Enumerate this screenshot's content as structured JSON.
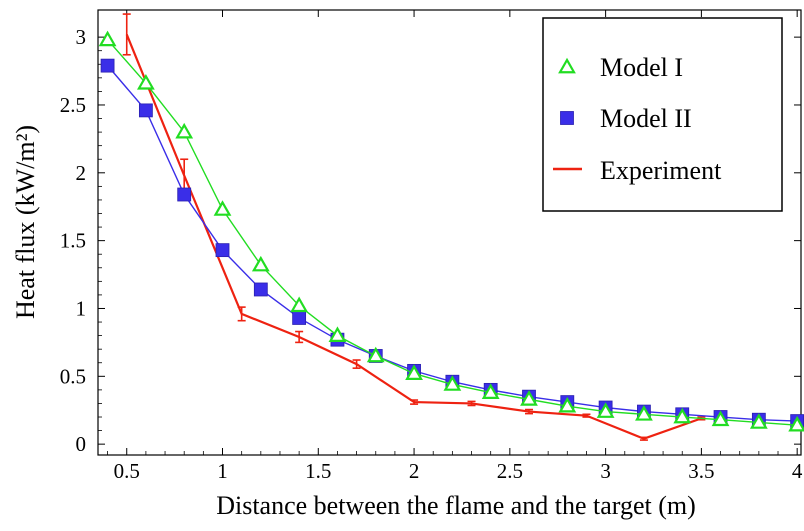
{
  "chart_data": {
    "type": "line",
    "xlabel": "Distance between the flame and the target (m)",
    "ylabel": "Heat flux (kW/m²)",
    "xlim": [
      0.35,
      4.02
    ],
    "ylim": [
      -0.08,
      3.2
    ],
    "x_ticks": [
      0.5,
      1,
      1.5,
      2,
      2.5,
      3,
      3.5,
      4
    ],
    "x_tick_labels": [
      "0.5",
      "1",
      "1.5",
      "2",
      "2.5",
      "3",
      "3.5",
      "4"
    ],
    "y_ticks": [
      0,
      0.5,
      1,
      1.5,
      2,
      2.5,
      3
    ],
    "y_tick_labels": [
      "0",
      "0.5",
      "1",
      "1.5",
      "2",
      "2.5",
      "3"
    ],
    "legend_position": "top-right",
    "series": [
      {
        "name": "Model I",
        "marker": "triangle",
        "color": "#22dd22",
        "x": [
          0.4,
          0.6,
          0.8,
          1.0,
          1.2,
          1.4,
          1.6,
          1.8,
          2.0,
          2.2,
          2.4,
          2.6,
          2.8,
          3.0,
          3.2,
          3.4,
          3.6,
          3.8,
          4.0
        ],
        "y": [
          2.98,
          2.66,
          2.3,
          1.73,
          1.32,
          1.02,
          0.8,
          0.65,
          0.52,
          0.44,
          0.38,
          0.33,
          0.28,
          0.24,
          0.22,
          0.2,
          0.18,
          0.16,
          0.14
        ]
      },
      {
        "name": "Model II",
        "marker": "square",
        "color": "#3a2ee8",
        "x": [
          0.4,
          0.6,
          0.8,
          1.0,
          1.2,
          1.4,
          1.6,
          1.8,
          2.0,
          2.2,
          2.4,
          2.6,
          2.8,
          3.0,
          3.2,
          3.4,
          3.6,
          3.8,
          4.0
        ],
        "y": [
          2.79,
          2.46,
          1.84,
          1.43,
          1.14,
          0.93,
          0.77,
          0.65,
          0.54,
          0.46,
          0.4,
          0.35,
          0.31,
          0.27,
          0.24,
          0.22,
          0.2,
          0.18,
          0.17
        ]
      },
      {
        "name": "Experiment",
        "marker": "none",
        "color": "#ee2211",
        "x": [
          0.5,
          0.8,
          1.1,
          1.4,
          1.7,
          2.0,
          2.3,
          2.6,
          2.9,
          3.2,
          3.5
        ],
        "y": [
          3.02,
          1.98,
          0.96,
          0.79,
          0.59,
          0.31,
          0.3,
          0.24,
          0.21,
          0.04,
          0.19
        ],
        "error": [
          0.15,
          0.12,
          0.05,
          0.04,
          0.03,
          0.015,
          0.015,
          0.015,
          0.01,
          0.01,
          0.01
        ]
      }
    ]
  }
}
